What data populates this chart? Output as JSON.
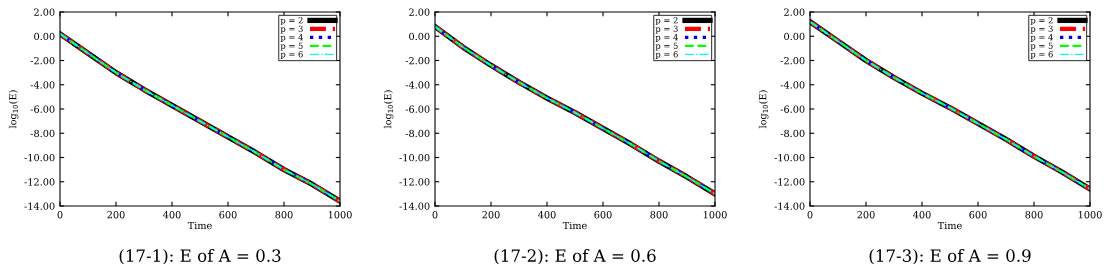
{
  "chart_data": [
    {
      "type": "line",
      "title": "(17-1): E of A = 0.3",
      "xlabel": "Time",
      "ylabel": "log$_{10}$(E)",
      "x": [
        0,
        100,
        200,
        300,
        400,
        500,
        600,
        700,
        800,
        900,
        1000
      ],
      "series": [
        {
          "name": "p = 2",
          "color": "#000000",
          "line_style": "solid",
          "values": [
            0.2,
            -1.4,
            -3.0,
            -4.4,
            -5.7,
            -7.0,
            -8.3,
            -9.6,
            -11.0,
            -12.2,
            -13.6
          ]
        },
        {
          "name": "p = 3",
          "color": "#ff0000",
          "line_style": "dashed",
          "values": [
            0.2,
            -1.4,
            -3.0,
            -4.4,
            -5.7,
            -7.0,
            -8.3,
            -9.6,
            -11.0,
            -12.2,
            -13.6
          ]
        },
        {
          "name": "p = 4",
          "color": "#0000ff",
          "line_style": "dotted",
          "values": [
            0.2,
            -1.4,
            -3.0,
            -4.4,
            -5.7,
            -7.0,
            -8.3,
            -9.6,
            -11.0,
            -12.2,
            -13.6
          ]
        },
        {
          "name": "p = 5",
          "color": "#00ff00",
          "line_style": "dashed",
          "values": [
            0.2,
            -1.4,
            -3.0,
            -4.4,
            -5.7,
            -7.0,
            -8.3,
            -9.6,
            -11.0,
            -12.2,
            -13.6
          ]
        },
        {
          "name": "p = 6",
          "color": "#00ffff",
          "line_style": "dashdot",
          "values": [
            0.2,
            -1.4,
            -3.0,
            -4.4,
            -5.7,
            -7.0,
            -8.3,
            -9.6,
            -11.0,
            -12.2,
            -13.6
          ]
        }
      ],
      "xlim": [
        0,
        1000
      ],
      "xticks": [
        0,
        200,
        400,
        600,
        800,
        1000
      ],
      "ylim": [
        -14,
        2
      ],
      "yticks": [
        {
          "value": 2,
          "label": "2.00"
        },
        {
          "value": 0,
          "label": "0.00"
        },
        {
          "value": -2,
          "label": "-2.00"
        },
        {
          "value": -4,
          "label": "-4.00"
        },
        {
          "value": -6,
          "label": "-6.00"
        },
        {
          "value": -8,
          "label": "-8.00"
        },
        {
          "value": -10,
          "label": "-10.00"
        },
        {
          "value": -12,
          "label": "-12.00"
        },
        {
          "value": -14,
          "label": "-14.00"
        }
      ],
      "legend": "top right",
      "grid": false,
      "marker": "none"
    },
    {
      "type": "line",
      "title": "(17-2): E of A = 0.6",
      "xlabel": "Time",
      "ylabel": "log$_{10}$(E)",
      "x": [
        0,
        100,
        200,
        300,
        400,
        500,
        600,
        700,
        800,
        900,
        1000
      ],
      "series": [
        {
          "name": "p = 2",
          "color": "#000000",
          "line_style": "solid",
          "values": [
            0.8,
            -0.9,
            -2.4,
            -3.8,
            -5.1,
            -6.3,
            -7.6,
            -8.9,
            -10.3,
            -11.6,
            -13.0
          ]
        },
        {
          "name": "p = 3",
          "color": "#ff0000",
          "line_style": "dashed",
          "values": [
            0.8,
            -0.9,
            -2.4,
            -3.8,
            -5.1,
            -6.3,
            -7.6,
            -8.9,
            -10.3,
            -11.6,
            -13.0
          ]
        },
        {
          "name": "p = 4",
          "color": "#0000ff",
          "line_style": "dotted",
          "values": [
            0.8,
            -0.9,
            -2.4,
            -3.8,
            -5.1,
            -6.3,
            -7.6,
            -8.9,
            -10.3,
            -11.6,
            -13.0
          ]
        },
        {
          "name": "p = 5",
          "color": "#00ff00",
          "line_style": "dashed",
          "values": [
            0.8,
            -0.9,
            -2.4,
            -3.8,
            -5.1,
            -6.3,
            -7.6,
            -8.9,
            -10.3,
            -11.6,
            -13.0
          ]
        },
        {
          "name": "p = 6",
          "color": "#00ffff",
          "line_style": "dashdot",
          "values": [
            0.8,
            -0.9,
            -2.4,
            -3.8,
            -5.1,
            -6.3,
            -7.6,
            -8.9,
            -10.3,
            -11.6,
            -13.0
          ]
        }
      ],
      "xlim": [
        0,
        1000
      ],
      "xticks": [
        0,
        200,
        400,
        600,
        800,
        1000
      ],
      "ylim": [
        -14,
        2
      ],
      "yticks": [
        {
          "value": 2,
          "label": "2.00"
        },
        {
          "value": 0,
          "label": "0.00"
        },
        {
          "value": -2,
          "label": "-2.00"
        },
        {
          "value": -4,
          "label": "-4.00"
        },
        {
          "value": -6,
          "label": "-6.00"
        },
        {
          "value": -8,
          "label": "-8.00"
        },
        {
          "value": -10,
          "label": "-10.00"
        },
        {
          "value": -12,
          "label": "-12.00"
        },
        {
          "value": -14,
          "label": "-14.00"
        }
      ],
      "legend": "top right",
      "grid": false,
      "marker": "none"
    },
    {
      "type": "line",
      "title": "(17-3): E of A = 0.9",
      "xlabel": "Time",
      "ylabel": "log$_{10}$(E)",
      "x": [
        0,
        100,
        200,
        300,
        400,
        500,
        600,
        700,
        800,
        900,
        1000
      ],
      "series": [
        {
          "name": "p = 2",
          "color": "#000000",
          "line_style": "solid",
          "values": [
            1.2,
            -0.4,
            -2.0,
            -3.4,
            -4.7,
            -5.9,
            -7.2,
            -8.5,
            -9.9,
            -11.2,
            -12.6
          ]
        },
        {
          "name": "p = 3",
          "color": "#ff0000",
          "line_style": "dashed",
          "values": [
            1.2,
            -0.4,
            -2.0,
            -3.4,
            -4.7,
            -5.9,
            -7.2,
            -8.5,
            -9.9,
            -11.2,
            -12.6
          ]
        },
        {
          "name": "p = 4",
          "color": "#0000ff",
          "line_style": "dotted",
          "values": [
            1.2,
            -0.4,
            -2.0,
            -3.4,
            -4.7,
            -5.9,
            -7.2,
            -8.5,
            -9.9,
            -11.2,
            -12.6
          ]
        },
        {
          "name": "p = 5",
          "color": "#00ff00",
          "line_style": "dashed",
          "values": [
            1.2,
            -0.4,
            -2.0,
            -3.4,
            -4.7,
            -5.9,
            -7.2,
            -8.5,
            -9.9,
            -11.2,
            -12.6
          ]
        },
        {
          "name": "p = 6",
          "color": "#00ffff",
          "line_style": "dashdot",
          "values": [
            1.2,
            -0.4,
            -2.0,
            -3.4,
            -4.7,
            -5.9,
            -7.2,
            -8.5,
            -9.9,
            -11.2,
            -12.6
          ]
        }
      ],
      "xlim": [
        0,
        1000
      ],
      "xticks": [
        0,
        200,
        400,
        600,
        800,
        1000
      ],
      "ylim": [
        -14,
        2
      ],
      "yticks": [
        {
          "value": 2,
          "label": "2.00"
        },
        {
          "value": 0,
          "label": "0.00"
        },
        {
          "value": -2,
          "label": "-2.00"
        },
        {
          "value": -4,
          "label": "-4.00"
        },
        {
          "value": -6,
          "label": "-6.00"
        },
        {
          "value": -8,
          "label": "-8.00"
        },
        {
          "value": -10,
          "label": "-10.00"
        },
        {
          "value": -12,
          "label": "-12.00"
        },
        {
          "value": -14,
          "label": "-14.00"
        }
      ],
      "legend": "top right",
      "grid": false,
      "marker": "none"
    }
  ]
}
